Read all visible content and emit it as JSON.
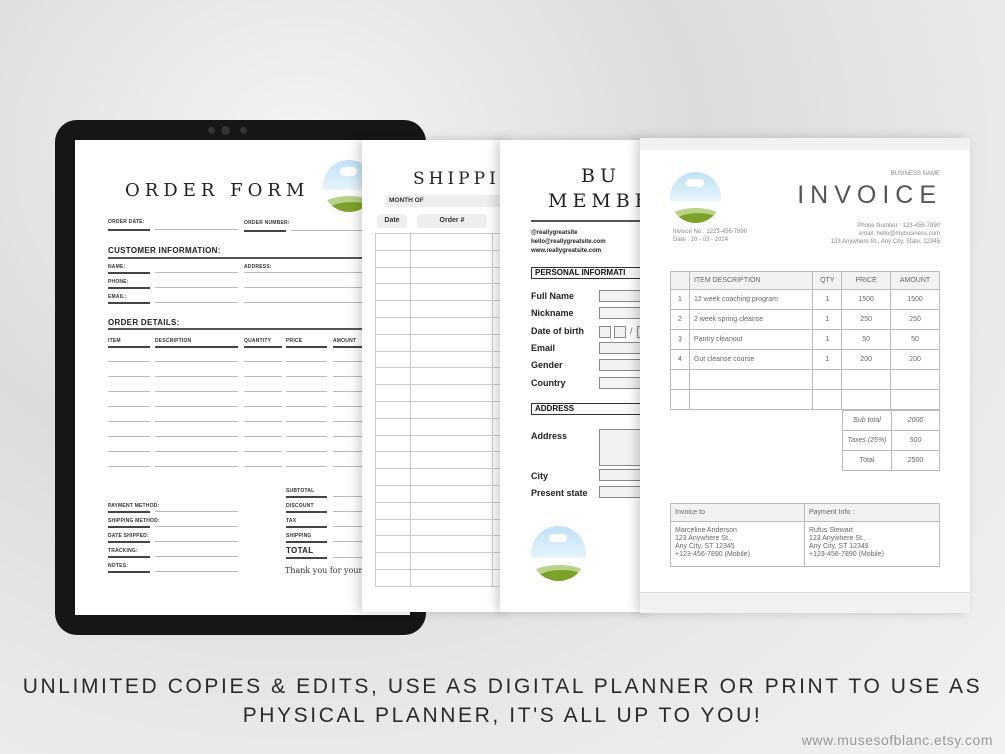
{
  "order_form": {
    "title": "ORDER FORM",
    "order_date": "ORDER DATE:",
    "order_number": "ORDER NUMBER:",
    "customer_heading": "CUSTOMER INFORMATION:",
    "name": "NAME:",
    "address": "ADDRESS:",
    "phone": "PHONE:",
    "email": "EMAIL:",
    "details_heading": "ORDER DETAILS:",
    "columns": [
      "ITEM",
      "DESCRIPTION",
      "QUANTITY",
      "PRICE",
      "AMOUNT"
    ],
    "payment_method": "PAYMENT METHOD:",
    "shipping_method": "SHIPPING METHOD:",
    "date_shipped": "DATE SHIPPED:",
    "tracking": "TRACKING:",
    "notes": "NOTES:",
    "subtotal": "SUBTOTAL",
    "discount": "DISCOUNT",
    "tax": "TAX",
    "shipping": "SHIPPING",
    "total": "TOTAL",
    "thanks": "Thank you for your or"
  },
  "shipping": {
    "title": "SHIPPIN",
    "month_of": "MONTH OF",
    "columns": [
      "Date",
      "Order #"
    ]
  },
  "membership": {
    "title_line1": "BU",
    "title_line2": "MEMBE",
    "handle": "@reallygreatsite",
    "email": "hello@reallygreatsite.com",
    "website": "www.reallygreatsite.com",
    "personal_heading": "PERSONAL INFORMATI",
    "fields": [
      "Full Name",
      "Nickname",
      "Date of birth",
      "Email",
      "Gender",
      "Country"
    ],
    "address_heading": "ADDRESS",
    "address": "Address",
    "city": "City",
    "present_state": "Present state"
  },
  "invoice": {
    "business_name": "BUSINESS NAME",
    "title": "INVOICE",
    "invoice_no": "Invoice No : 1223-456-7890",
    "date": "Date : 10 - 03 - 2024",
    "phone": "Phone Number : 123-456-7890",
    "email": "email: hello@mybusiness.com",
    "address": "123 Anywhere St., Any City, State,  12345",
    "columns": [
      "",
      "ITEM DESCRIPTION",
      "QTY",
      "PRICE",
      "AMOUNT"
    ],
    "items": [
      [
        "1",
        "12 week coaching program",
        "1",
        "1500",
        "1500"
      ],
      [
        "2",
        "2 week spring cleanse",
        "1",
        "250",
        "250"
      ],
      [
        "3",
        "Pantry cleanout",
        "1",
        "50",
        "50"
      ],
      [
        "4",
        "Gut cleanse course",
        "1",
        "200",
        "200"
      ]
    ],
    "sub_total_label": "Sub total",
    "sub_total": "2000",
    "taxes_label": "Taxes (25%)",
    "taxes": "500",
    "total_label": "Total",
    "total": "2500",
    "invoice_to_label": "Invoice to",
    "payment_info_label": "Payment Info :",
    "invoice_to": [
      "Marceline Anderson",
      "123 Anywhere St.,",
      "Any City, ST 12345",
      "+123-456-7890 (Mobile)"
    ],
    "payment_info": [
      "Rufus Stewart",
      "123 Anywhere St.,",
      "Any City, ST 12345",
      "+123-456-7890 (Mobile)"
    ]
  },
  "caption": {
    "line1": "UNLIMITED COPIES & EDITS, USE AS DIGITAL PLANNER OR PRINT TO USE AS",
    "line2": "PHYSICAL PLANNER, IT'S ALL UP TO YOU!"
  },
  "watermark": "www.musesofblanc.etsy.com"
}
